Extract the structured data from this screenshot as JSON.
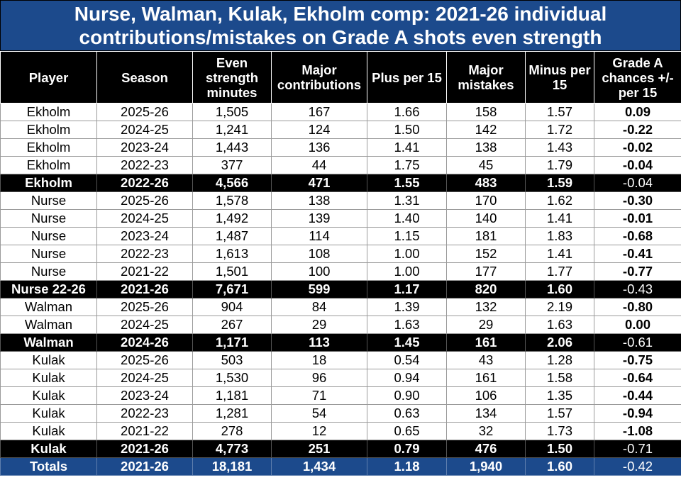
{
  "title": {
    "line1": "Nurse, Walman, Kulak, Ekholm comp: 2021-26 individual",
    "line2": "contributions/mistakes on Grade A shots even strength"
  },
  "headers": [
    "Player",
    "Season",
    "Even strength minutes",
    "Major contributions",
    "Plus per 15",
    "Major mistakes",
    "Minus per 15",
    "Grade A chances +/- per 15"
  ],
  "rows": [
    {
      "kind": "normal",
      "cells": [
        "Ekholm",
        "2025-26",
        "1,505",
        "167",
        "1.66",
        "158",
        "1.57",
        "0.09"
      ]
    },
    {
      "kind": "normal",
      "cells": [
        "Ekholm",
        "2024-25",
        "1,241",
        "124",
        "1.50",
        "142",
        "1.72",
        "-0.22"
      ]
    },
    {
      "kind": "normal",
      "cells": [
        "Ekholm",
        "2023-24",
        "1,443",
        "136",
        "1.41",
        "138",
        "1.43",
        "-0.02"
      ]
    },
    {
      "kind": "normal",
      "cells": [
        "Ekholm",
        "2022-23",
        "377",
        "44",
        "1.75",
        "45",
        "1.79",
        "-0.04"
      ]
    },
    {
      "kind": "sum",
      "cells": [
        "Ekholm",
        "2022-26",
        "4,566",
        "471",
        "1.55",
        "483",
        "1.59",
        "-0.04"
      ]
    },
    {
      "kind": "normal",
      "cells": [
        "Nurse",
        "2025-26",
        "1,578",
        "138",
        "1.31",
        "170",
        "1.62",
        "-0.30"
      ]
    },
    {
      "kind": "normal",
      "cells": [
        "Nurse",
        "2024-25",
        "1,492",
        "139",
        "1.40",
        "140",
        "1.41",
        "-0.01"
      ]
    },
    {
      "kind": "normal",
      "cells": [
        "Nurse",
        "2023-24",
        "1,487",
        "114",
        "1.15",
        "181",
        "1.83",
        "-0.68"
      ]
    },
    {
      "kind": "normal",
      "cells": [
        "Nurse",
        "2022-23",
        "1,613",
        "108",
        "1.00",
        "152",
        "1.41",
        "-0.41"
      ]
    },
    {
      "kind": "normal",
      "cells": [
        "Nurse",
        "2021-22",
        "1,501",
        "100",
        "1.00",
        "177",
        "1.77",
        "-0.77"
      ]
    },
    {
      "kind": "sum",
      "cells": [
        "Nurse 22-26",
        "2021-26",
        "7,671",
        "599",
        "1.17",
        "820",
        "1.60",
        "-0.43"
      ]
    },
    {
      "kind": "normal",
      "cells": [
        "Walman",
        "2025-26",
        "904",
        "84",
        "1.39",
        "132",
        "2.19",
        "-0.80"
      ]
    },
    {
      "kind": "normal",
      "cells": [
        "Walman",
        "2024-25",
        "267",
        "29",
        "1.63",
        "29",
        "1.63",
        "0.00"
      ]
    },
    {
      "kind": "sum",
      "cells": [
        "Walman",
        "2024-26",
        "1,171",
        "113",
        "1.45",
        "161",
        "2.06",
        "-0.61"
      ]
    },
    {
      "kind": "normal",
      "cells": [
        "Kulak",
        "2025-26",
        "503",
        "18",
        "0.54",
        "43",
        "1.28",
        "-0.75"
      ]
    },
    {
      "kind": "normal",
      "cells": [
        "Kulak",
        "2024-25",
        "1,530",
        "96",
        "0.94",
        "161",
        "1.58",
        "-0.64"
      ]
    },
    {
      "kind": "normal",
      "cells": [
        "Kulak",
        "2023-24",
        "1,181",
        "71",
        "0.90",
        "106",
        "1.35",
        "-0.44"
      ]
    },
    {
      "kind": "normal",
      "cells": [
        "Kulak",
        "2022-23",
        "1,281",
        "54",
        "0.63",
        "134",
        "1.57",
        "-0.94"
      ]
    },
    {
      "kind": "normal",
      "cells": [
        "Kulak",
        "2021-22",
        "278",
        "12",
        "0.65",
        "32",
        "1.73",
        "-1.08"
      ]
    },
    {
      "kind": "sum",
      "cells": [
        "Kulak",
        "2021-26",
        "4,773",
        "251",
        "0.79",
        "476",
        "1.50",
        "-0.71"
      ]
    },
    {
      "kind": "total",
      "cells": [
        "Totals",
        "2021-26",
        "18,181",
        "1,434",
        "1.18",
        "1,940",
        "1.60",
        "-0.42"
      ]
    }
  ]
}
